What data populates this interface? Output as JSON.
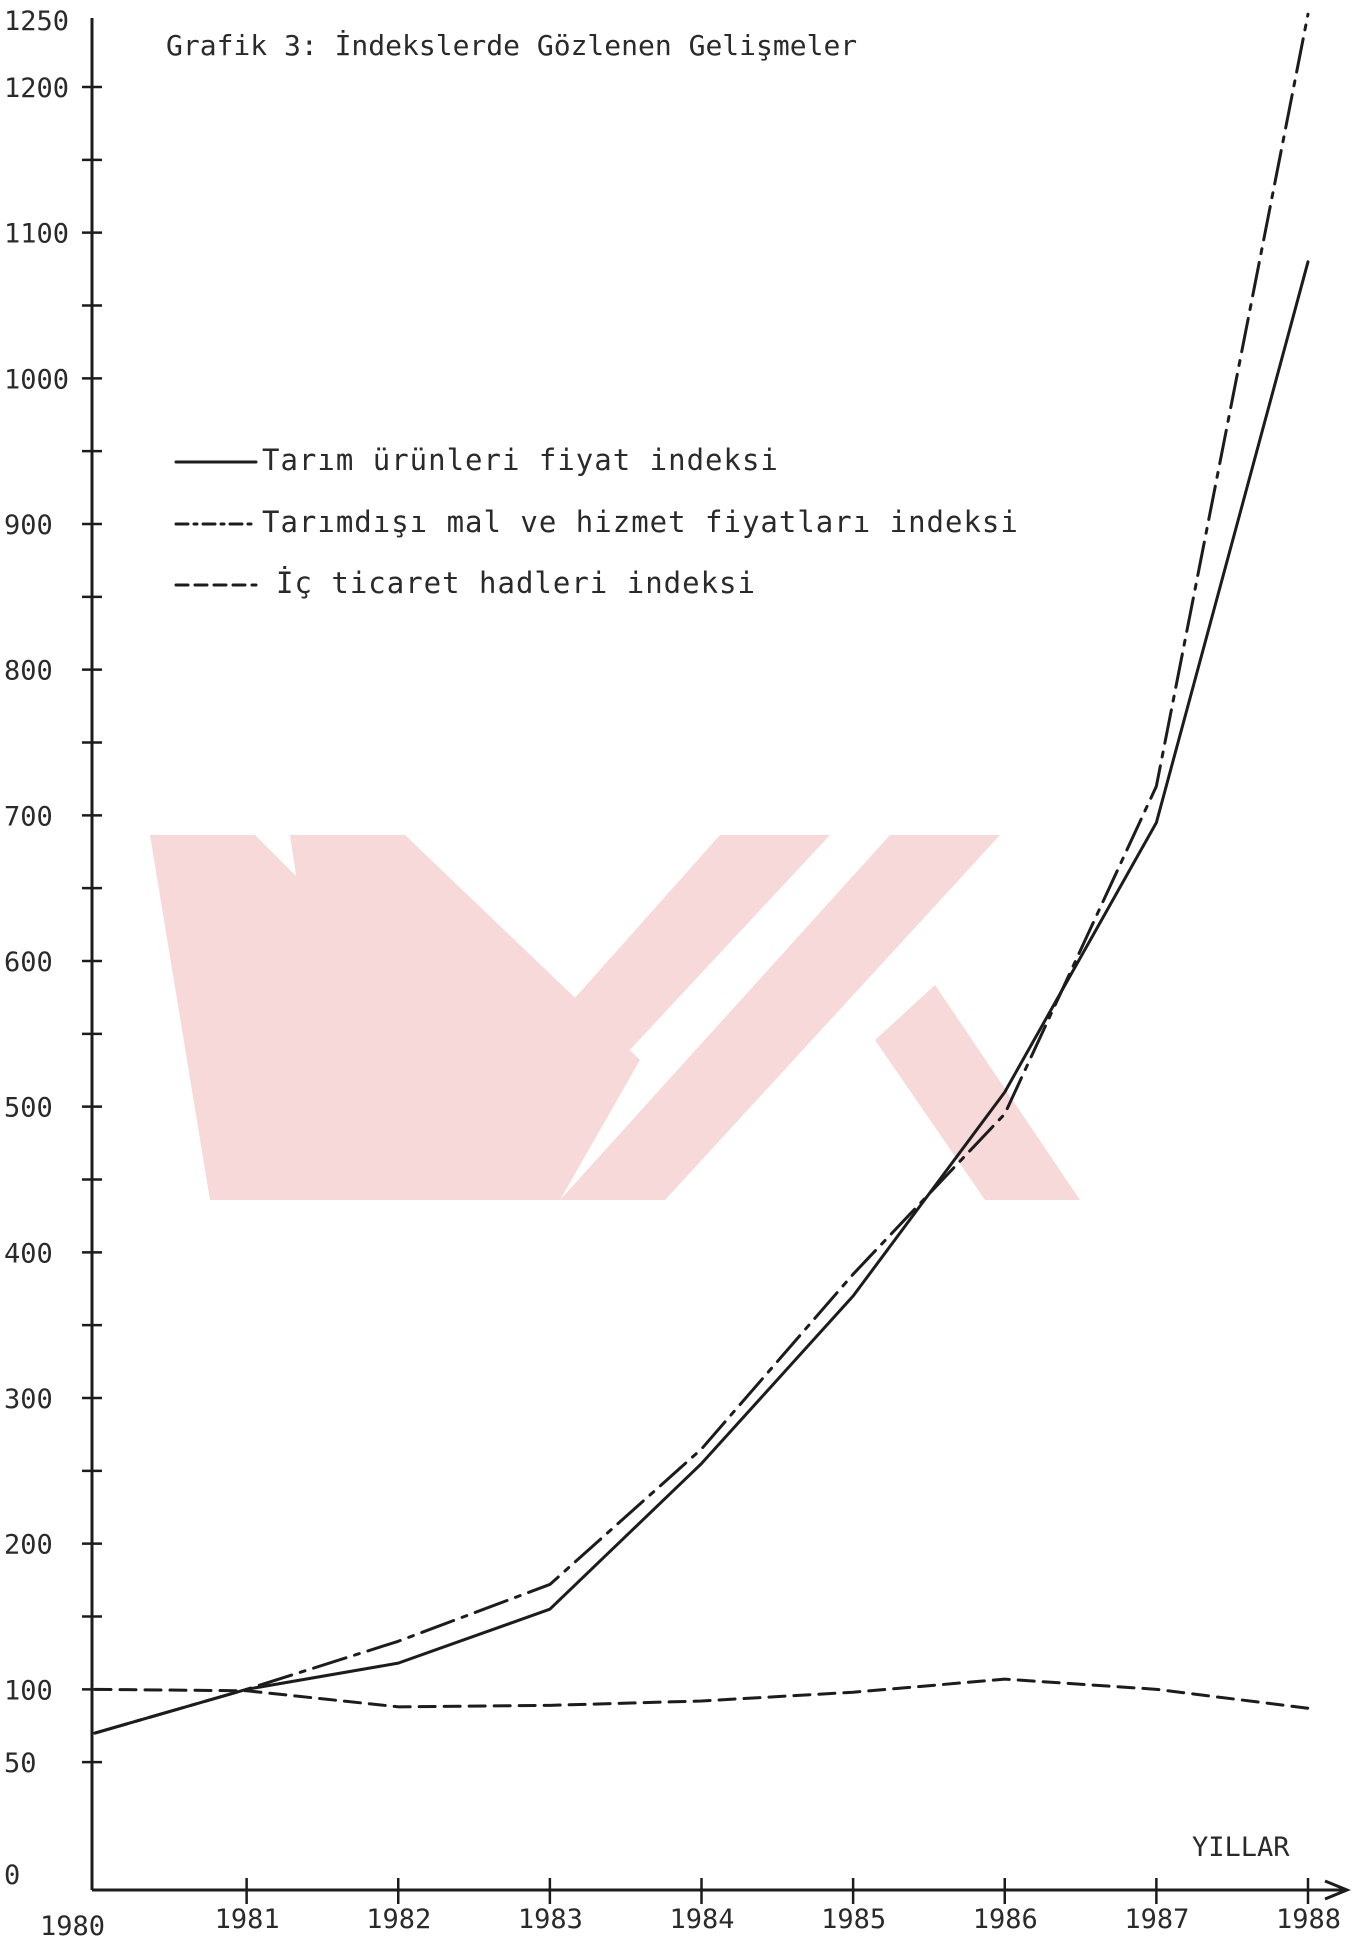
{
  "chart_data": {
    "type": "line",
    "title": "Grafik 3: İndekslerde Gözlenen Gelişmeler",
    "xlabel": "YILLAR",
    "ylabel": "",
    "x": [
      1980,
      1981,
      1982,
      1983,
      1984,
      1985,
      1986,
      1987,
      1988
    ],
    "x_tick_labels": [
      "1980",
      "1981",
      "1982",
      "1983",
      "1984",
      "1985",
      "1986",
      "1987",
      "1988"
    ],
    "ylim": [
      0,
      1250
    ],
    "y_tick_labels": [
      "0",
      "50",
      "100",
      "200",
      "300",
      "400",
      "500",
      "600",
      "700",
      "800",
      "900",
      "1000",
      "1100",
      "1200",
      "1250"
    ],
    "y_tick_values": [
      0,
      50,
      100,
      200,
      300,
      400,
      500,
      600,
      700,
      800,
      900,
      1000,
      1100,
      1200,
      1250
    ],
    "y_minor_tick_step": 50,
    "legend_position": "top-left",
    "grid": false,
    "series": [
      {
        "name": "Tarım ürünleri fiyat indeksi",
        "style": "solid",
        "values": [
          70,
          100,
          118,
          155,
          255,
          370,
          510,
          695,
          1080
        ]
      },
      {
        "name": "Tarımdışı mal ve hizmet fiyatları indeksi",
        "style": "dash-dot",
        "values": [
          70,
          100,
          133,
          172,
          265,
          385,
          495,
          720,
          1250
        ]
      },
      {
        "name": "İç ticaret hadleri indeksi",
        "style": "dashed",
        "values": [
          100,
          99,
          88,
          89,
          92,
          98,
          107,
          100,
          87
        ]
      }
    ]
  },
  "colors": {
    "ink": "#1c1c1c",
    "watermark": "#f7d9d9"
  }
}
